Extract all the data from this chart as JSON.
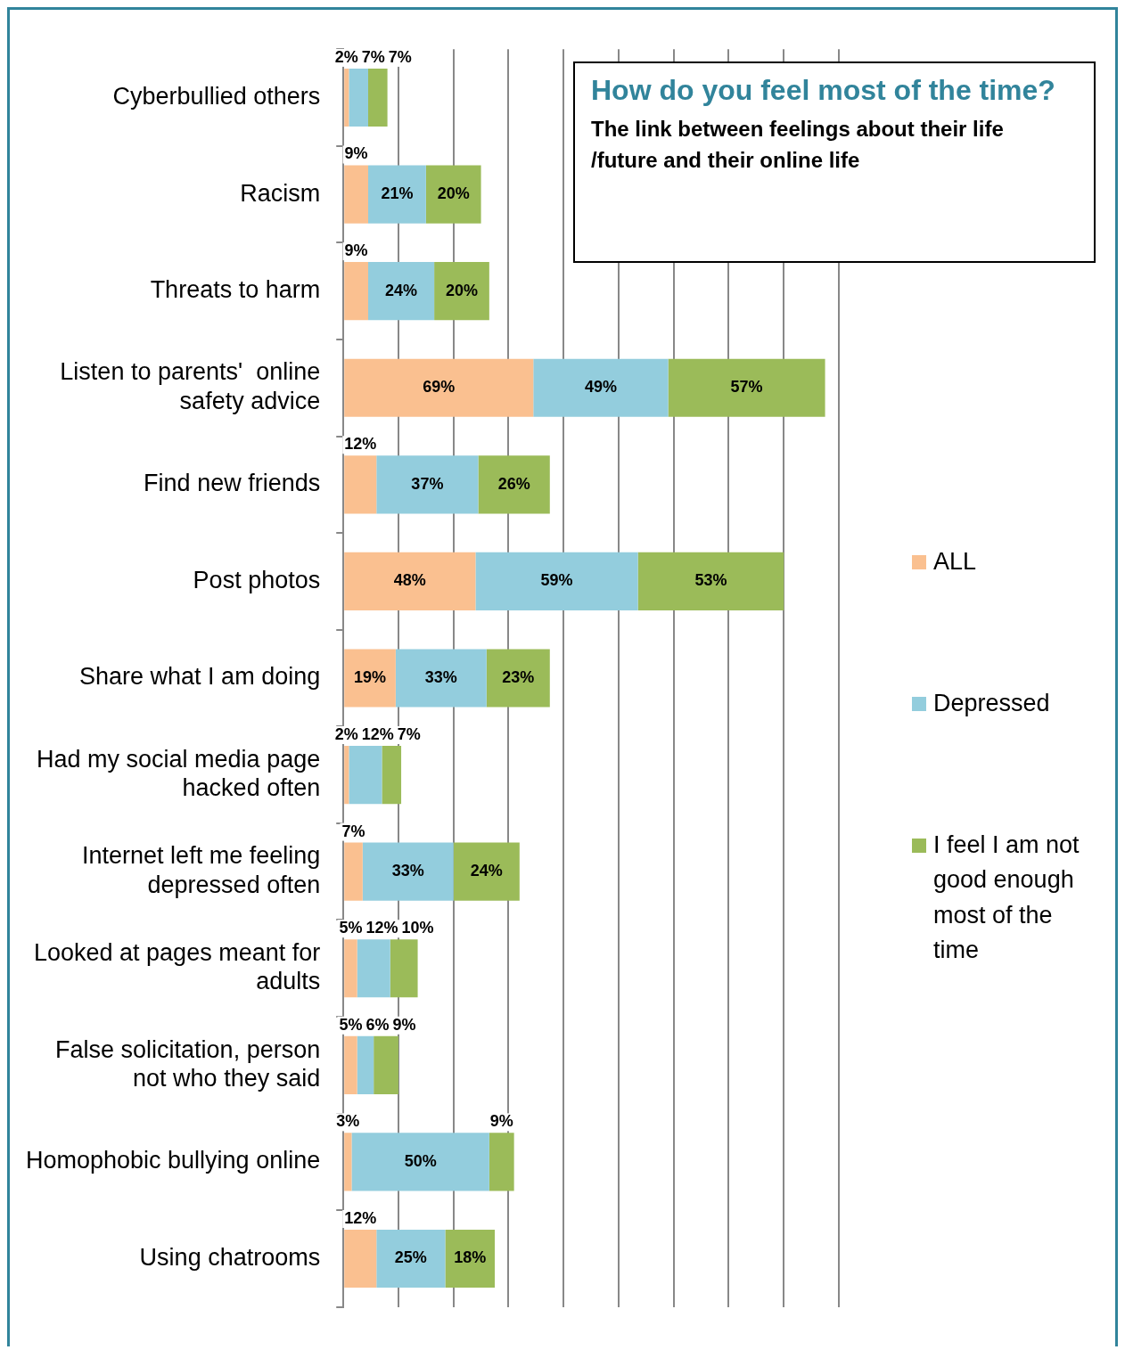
{
  "chart_data": {
    "type": "bar",
    "orientation": "horizontal",
    "stacked": true,
    "title": "How do you feel most of the time?",
    "subtitle": "The link between  feelings about their life /future and their online life",
    "categories": [
      "Cyberbullied others",
      "Racism",
      "Threats to harm",
      "Listen to parents'  online safety advice",
      "Find new friends",
      "Post photos",
      "Share what I am doing",
      "Had my social media page hacked often",
      "Internet left me feeling depressed often",
      "Looked at pages meant for adults",
      "False solicitation, person not who they said",
      "Homophobic bullying online",
      "Using chatrooms"
    ],
    "series": [
      {
        "name": "ALL",
        "color": "#fac090",
        "values": [
          2,
          9,
          9,
          69,
          12,
          48,
          19,
          2,
          7,
          5,
          5,
          3,
          12
        ],
        "value_labels": [
          "2%",
          "9%",
          "9%",
          "69%",
          "12%",
          "48%",
          "19%",
          "2%",
          "7%",
          "5%",
          "5%",
          "3%",
          "12%"
        ]
      },
      {
        "name": "Depressed",
        "color": "#93cddd",
        "values": [
          7,
          21,
          24,
          49,
          37,
          59,
          33,
          12,
          33,
          12,
          6,
          50,
          25
        ],
        "value_labels": [
          "7%",
          "21%",
          "24%",
          "49%",
          "37%",
          "59%",
          "33%",
          "12%",
          "33%",
          "12%",
          "6%",
          "50%",
          "25%"
        ]
      },
      {
        "name": "I feel I am not good enough most of the time",
        "color": "#9bbb59",
        "values": [
          7,
          20,
          20,
          57,
          26,
          53,
          23,
          7,
          24,
          10,
          9,
          9,
          18
        ],
        "value_labels": [
          "7%",
          "20%",
          "20%",
          "57%",
          "26%",
          "53%",
          "23%",
          "7%",
          "24%",
          "10%",
          "9%",
          "9%",
          "18%"
        ]
      }
    ],
    "grid": "x",
    "legend": "right"
  }
}
